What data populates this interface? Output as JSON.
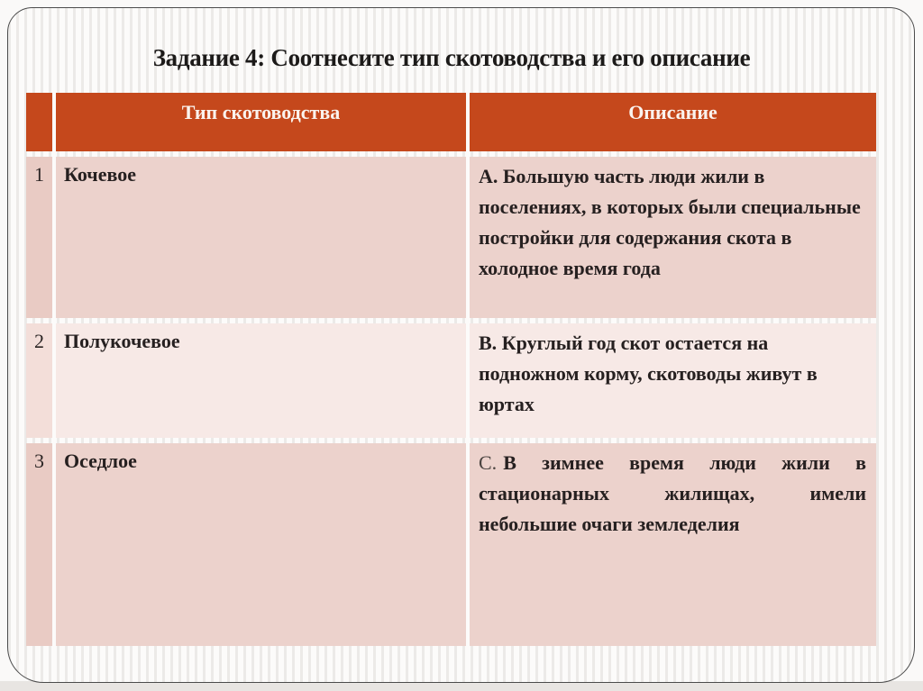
{
  "slide": {
    "title": "Задание 4: Соотнесите тип скотоводства и его описание"
  },
  "table": {
    "headers": {
      "number": "",
      "type": "Тип скотоводства",
      "description": "Описание"
    },
    "rows": [
      {
        "num": "1",
        "type": "Кочевое",
        "desc": "А. Большую часть люди жили в поселениях, в которых были специальные постройки для содержания скота в холодное время года"
      },
      {
        "num": "2",
        "type": "Полукочевое",
        "desc": "В. Круглый год скот остается на подножном корму, скотоводы живут в юртах"
      },
      {
        "num": "3",
        "type": "Оседлое",
        "desc_prefix": "С.",
        "desc": "В зимнее время люди жили в стационарных жилищах, имели небольшие очаги земледелия"
      }
    ]
  },
  "colors": {
    "accent_orange": "#c5481c",
    "row_pink_dark": "#ecd2cc",
    "row_pink_light": "#f7e9e6",
    "frame_border": "#4c4c4c",
    "title_text": "#1c1a19",
    "header_text": "#faf3ee"
  }
}
